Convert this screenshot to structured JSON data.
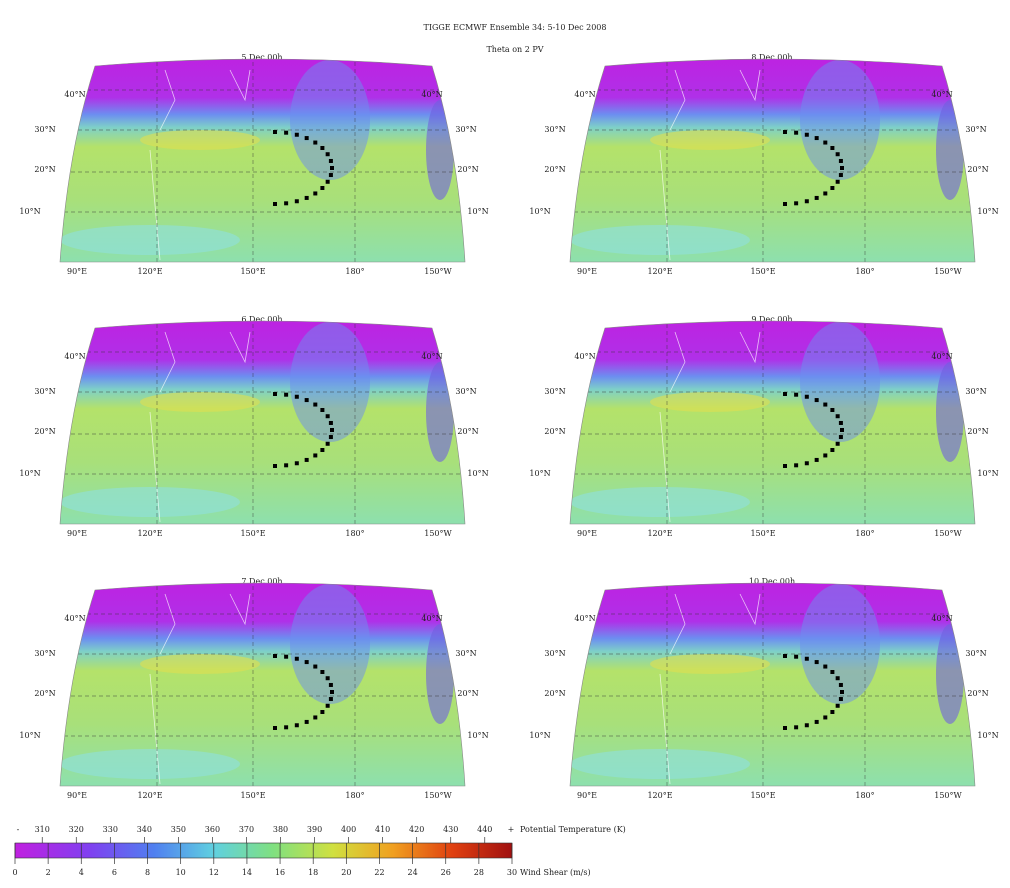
{
  "title": "TIGGE ECMWF Ensemble 34: 5-10 Dec 2008",
  "subtitle": "Theta on 2 PV",
  "panels": [
    {
      "title": "5 Dec 00h"
    },
    {
      "title": "6 Dec 00h"
    },
    {
      "title": "7 Dec 00h"
    },
    {
      "title": "8 Dec 00h"
    },
    {
      "title": "9 Dec 00h"
    },
    {
      "title": "10 Dec 00h"
    }
  ],
  "lat_labels": [
    "40°N",
    "30°N",
    "20°N",
    "10°N"
  ],
  "lon_labels": [
    "90°E",
    "120°E",
    "150°E",
    "180°",
    "150°W"
  ],
  "colorbar": {
    "theta_label": "Potential Temperature (K)",
    "theta_lim": [
      302,
      448
    ],
    "theta_ticks": [
      310,
      320,
      330,
      340,
      350,
      360,
      370,
      380,
      390,
      400,
      410,
      420,
      430,
      440
    ],
    "shear_label": "Wind Shear (m/s)",
    "shear_lim": [
      0,
      30
    ],
    "shear_ticks": [
      0,
      2,
      4,
      6,
      8,
      10,
      12,
      14,
      16,
      18,
      20,
      22,
      24,
      26,
      28,
      30
    ]
  }
}
